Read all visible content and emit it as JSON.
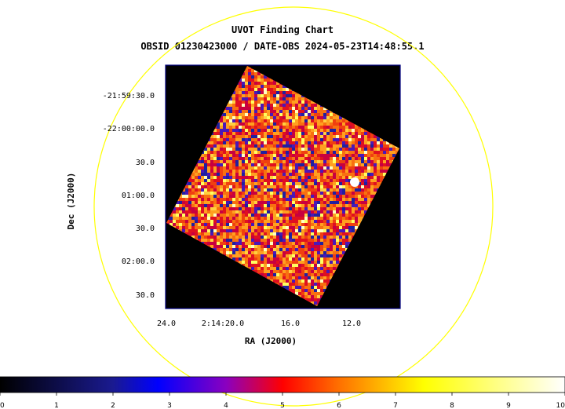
{
  "chart_data": {
    "type": "heatmap",
    "title": "UVOT Finding Chart",
    "subtitle": "OBSID 01230423000 / DATE-OBS 2024-05-23T14:48:55.1",
    "xlabel": "RA (J2000)",
    "ylabel": "Dec (J2000)",
    "x_ticks": [
      "24.0",
      "2:14:20.0",
      "16.0",
      "12.0"
    ],
    "y_ticks": [
      "-21:59:30.0",
      "-22:00:00.0",
      "30.0",
      "01:00.0",
      "30.0",
      "02:00.0",
      "30.0"
    ],
    "colorbar": {
      "min": 0,
      "max": 10,
      "ticks": [
        "0",
        "1",
        "2",
        "3",
        "4",
        "5",
        "6",
        "7",
        "8",
        "9",
        "10"
      ]
    },
    "colors": {
      "circle": "#ffff00",
      "frame": "#000080",
      "background": "#000000"
    }
  }
}
